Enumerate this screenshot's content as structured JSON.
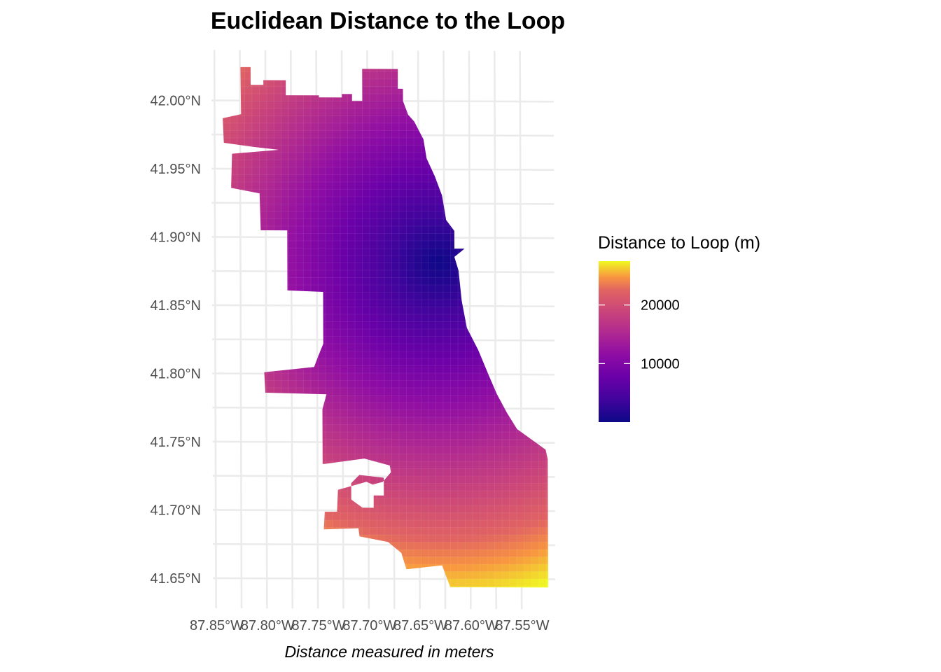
{
  "chart_data": {
    "type": "heatmap",
    "title": "Euclidean Distance to the Loop",
    "xlabel": "Distance measured in meters",
    "ylabel": "",
    "x_ticks": [
      -87.85,
      -87.8,
      -87.75,
      -87.7,
      -87.65,
      -87.6,
      -87.55
    ],
    "x_tick_labels": [
      "87.85°W",
      "87.80°W",
      "87.75°W",
      "87.70°W",
      "87.65°W",
      "87.60°W",
      "87.55°W"
    ],
    "y_ticks": [
      41.65,
      41.7,
      41.75,
      41.8,
      41.85,
      41.9,
      41.95,
      42.0
    ],
    "y_tick_labels": [
      "41.65°N",
      "41.70°N",
      "41.75°N",
      "41.80°N",
      "41.85°N",
      "41.90°N",
      "41.95°N",
      "42.00°N"
    ],
    "xlim": [
      -87.853,
      -87.517
    ],
    "ylim": [
      41.643,
      42.025
    ],
    "value_range": [
      0,
      27500
    ],
    "loop_center": [
      -87.63,
      41.882
    ],
    "cell_size_m": 1000,
    "colormap": "plasma",
    "colors": {
      "low": "#0d0887",
      "mid_low": "#7e03a8",
      "mid": "#cc4778",
      "mid_high": "#f89540",
      "high": "#f0f921"
    },
    "legend": {
      "title": "Distance to Loop (m)",
      "labels": [
        "20000",
        "10000"
      ],
      "breaks": [
        20000,
        10000
      ],
      "placement": "right"
    },
    "region_outline_lonlat": [
      [
        -87.8245,
        42.0245
      ],
      [
        -87.8145,
        42.0245
      ],
      [
        -87.8145,
        42.0115
      ],
      [
        -87.802,
        42.0115
      ],
      [
        -87.802,
        42.015
      ],
      [
        -87.78,
        42.015
      ],
      [
        -87.78,
        42.004
      ],
      [
        -87.7475,
        42.004
      ],
      [
        -87.7475,
        42.0025
      ],
      [
        -87.725,
        42.0025
      ],
      [
        -87.725,
        42.005
      ],
      [
        -87.715,
        42.005
      ],
      [
        -87.715,
        42.0
      ],
      [
        -87.705,
        42.0
      ],
      [
        -87.705,
        42.0235
      ],
      [
        -87.67,
        42.0235
      ],
      [
        -87.67,
        42.009
      ],
      [
        -87.665,
        42.009
      ],
      [
        -87.665,
        42.0
      ],
      [
        -87.66,
        41.99
      ],
      [
        -87.654,
        41.985
      ],
      [
        -87.645,
        41.972
      ],
      [
        -87.642,
        41.958
      ],
      [
        -87.634,
        41.945
      ],
      [
        -87.627,
        41.931
      ],
      [
        -87.623,
        41.913
      ],
      [
        -87.615,
        41.905
      ],
      [
        -87.615,
        41.892
      ],
      [
        -87.605,
        41.892
      ],
      [
        -87.615,
        41.886
      ],
      [
        -87.611,
        41.876
      ],
      [
        -87.608,
        41.854
      ],
      [
        -87.603,
        41.834
      ],
      [
        -87.592,
        41.818
      ],
      [
        -87.582,
        41.8
      ],
      [
        -87.574,
        41.786
      ],
      [
        -87.564,
        41.772
      ],
      [
        -87.554,
        41.76
      ],
      [
        -87.539,
        41.752
      ],
      [
        -87.526,
        41.745
      ],
      [
        -87.524,
        41.738
      ],
      [
        -87.524,
        41.644
      ],
      [
        -87.62,
        41.644
      ],
      [
        -87.628,
        41.66
      ],
      [
        -87.663,
        41.657
      ],
      [
        -87.668,
        41.669
      ],
      [
        -87.681,
        41.677
      ],
      [
        -87.709,
        41.681
      ],
      [
        -87.71,
        41.687
      ],
      [
        -87.744,
        41.686
      ],
      [
        -87.743,
        41.699
      ],
      [
        -87.731,
        41.699
      ],
      [
        -87.73,
        41.715
      ],
      [
        -87.702,
        41.721
      ],
      [
        -87.696,
        41.719
      ],
      [
        -87.686,
        41.721
      ],
      [
        -87.678,
        41.728
      ],
      [
        -87.679,
        41.733
      ],
      [
        -87.704,
        41.738
      ],
      [
        -87.743,
        41.734
      ],
      [
        -87.745,
        41.734
      ],
      [
        -87.745,
        41.774
      ],
      [
        -87.741,
        41.785
      ],
      [
        -87.801,
        41.786
      ],
      [
        -87.802,
        41.801
      ],
      [
        -87.753,
        41.805
      ],
      [
        -87.749,
        41.813
      ],
      [
        -87.744,
        41.822
      ],
      [
        -87.744,
        41.86
      ],
      [
        -87.779,
        41.861
      ],
      [
        -87.779,
        41.905
      ],
      [
        -87.805,
        41.905
      ],
      [
        -87.806,
        41.932
      ],
      [
        -87.834,
        41.936
      ],
      [
        -87.833,
        41.961
      ],
      [
        -87.787,
        41.964
      ],
      [
        -87.811,
        41.966
      ],
      [
        -87.841,
        41.969
      ],
      [
        -87.842,
        41.987
      ],
      [
        -87.824,
        41.99
      ],
      [
        -87.8245,
        42.0245
      ]
    ],
    "holes_lonlat": [
      [
        [
          -87.706,
          41.702
        ],
        [
          -87.695,
          41.702
        ],
        [
          -87.695,
          41.711
        ],
        [
          -87.685,
          41.711
        ],
        [
          -87.685,
          41.724
        ],
        [
          -87.709,
          41.726
        ],
        [
          -87.717,
          41.72
        ],
        [
          -87.717,
          41.708
        ],
        [
          -87.706,
          41.702
        ]
      ]
    ]
  }
}
